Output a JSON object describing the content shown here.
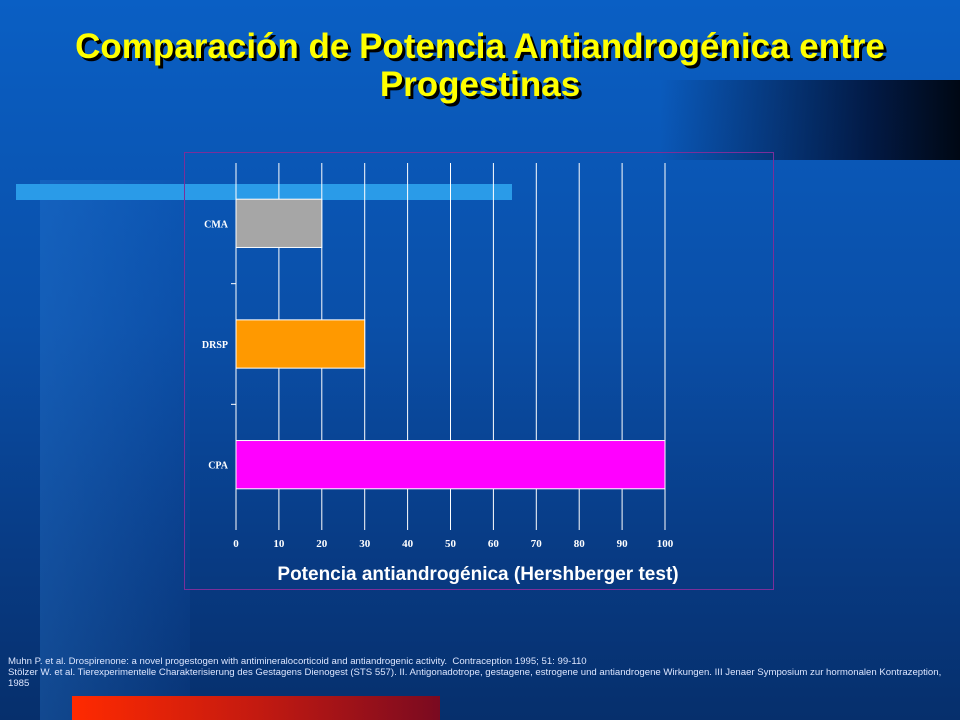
{
  "title": "Comparación de Potencia Antiandrogénica entre Progestinas",
  "references": [
    "Muhn P. et al. Drospirenone: a novel progestogen with antimineralocorticoid and antiandrogenic activity.  Contraception 1995; 51: 99-110",
    "Stölzer W. et al. Tierexperimentelle Charakterisierung des Gestagens Dienogest (STS 557). II. Antigonadotrope, gestagene, estrogene und antiandrogene Wirkungen. III Jenaer Symposium zur hormonalen Kontrazeption, 1985"
  ],
  "chart_data": {
    "type": "bar",
    "orientation": "horizontal",
    "categories": [
      "CMA",
      "DRSP",
      "CPA"
    ],
    "values": [
      20,
      30,
      100
    ],
    "colors": [
      "#a6a6a6",
      "#ff9900",
      "#ff00ff"
    ],
    "xlabel": "Potencia antiandrogénica (Hershberger test)",
    "ylabel": "",
    "xlim": [
      0,
      100
    ],
    "xticks": [
      0,
      10,
      20,
      30,
      40,
      50,
      60,
      70,
      80,
      90,
      100
    ],
    "grid": "vertical"
  }
}
